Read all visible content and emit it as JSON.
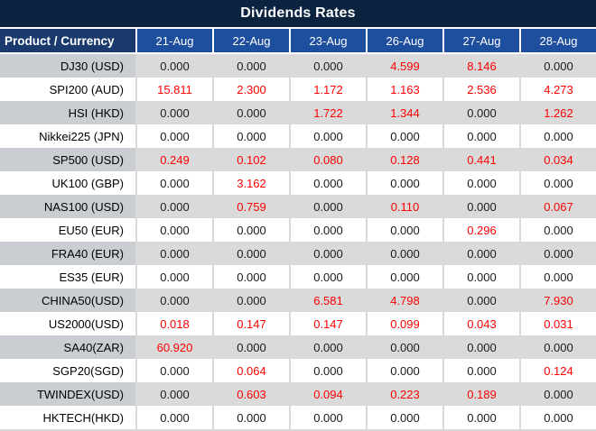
{
  "title": "Dividends Rates",
  "colors": {
    "title_bg": "#0c2340",
    "product_header_bg": "#1a3a6d",
    "date_header_bg": "#1d4f9e",
    "header_text": "#ffffff",
    "shaded_row_product_bg": "#cacdd2",
    "shaded_row_value_bg": "#dadada",
    "white_row_bg": "#ffffff",
    "zero_value_text": "#1a1a1a",
    "nonzero_value_text": "#ff0000",
    "gridline": "#d9d9d9"
  },
  "table": {
    "product_header": "Product / Currency",
    "date_columns": [
      "21-Aug",
      "22-Aug",
      "23-Aug",
      "26-Aug",
      "27-Aug",
      "28-Aug"
    ],
    "rows": [
      {
        "product": "DJ30 (USD)",
        "values": [
          "0.000",
          "0.000",
          "0.000",
          "4.599",
          "8.146",
          "0.000"
        ],
        "red": [
          0,
          0,
          0,
          1,
          1,
          0
        ]
      },
      {
        "product": "SPI200 (AUD)",
        "values": [
          "15.811",
          "2.300",
          "1.172",
          "1.163",
          "2.536",
          "4.273"
        ],
        "red": [
          1,
          1,
          1,
          1,
          1,
          1
        ]
      },
      {
        "product": "HSI (HKD)",
        "values": [
          "0.000",
          "0.000",
          "1.722",
          "1.344",
          "0.000",
          "1.262"
        ],
        "red": [
          0,
          0,
          1,
          1,
          0,
          1
        ]
      },
      {
        "product": "Nikkei225 (JPN)",
        "values": [
          "0.000",
          "0.000",
          "0.000",
          "0.000",
          "0.000",
          "0.000"
        ],
        "red": [
          0,
          0,
          0,
          0,
          0,
          0
        ]
      },
      {
        "product": "SP500 (USD)",
        "values": [
          "0.249",
          "0.102",
          "0.080",
          "0.128",
          "0.441",
          "0.034"
        ],
        "red": [
          1,
          1,
          1,
          1,
          1,
          1
        ]
      },
      {
        "product": "UK100 (GBP)",
        "values": [
          "0.000",
          "3.162",
          "0.000",
          "0.000",
          "0.000",
          "0.000"
        ],
        "red": [
          0,
          1,
          0,
          0,
          0,
          0
        ]
      },
      {
        "product": "NAS100 (USD)",
        "values": [
          "0.000",
          "0.759",
          "0.000",
          "0.110",
          "0.000",
          "0.067"
        ],
        "red": [
          0,
          1,
          0,
          1,
          0,
          1
        ]
      },
      {
        "product": "EU50 (EUR)",
        "values": [
          "0.000",
          "0.000",
          "0.000",
          "0.000",
          "0.296",
          "0.000"
        ],
        "red": [
          0,
          0,
          0,
          0,
          1,
          0
        ]
      },
      {
        "product": "FRA40 (EUR)",
        "values": [
          "0.000",
          "0.000",
          "0.000",
          "0.000",
          "0.000",
          "0.000"
        ],
        "red": [
          0,
          0,
          0,
          0,
          0,
          0
        ]
      },
      {
        "product": "ES35 (EUR)",
        "values": [
          "0.000",
          "0.000",
          "0.000",
          "0.000",
          "0.000",
          "0.000"
        ],
        "red": [
          0,
          0,
          0,
          0,
          0,
          0
        ]
      },
      {
        "product": "CHINA50(USD)",
        "values": [
          "0.000",
          "0.000",
          "6.581",
          "4.798",
          "0.000",
          "7.930"
        ],
        "red": [
          0,
          0,
          1,
          1,
          0,
          1
        ]
      },
      {
        "product": "US2000(USD)",
        "values": [
          "0.018",
          "0.147",
          "0.147",
          "0.099",
          "0.043",
          "0.031"
        ],
        "red": [
          1,
          1,
          1,
          1,
          1,
          1
        ]
      },
      {
        "product": "SA40(ZAR)",
        "values": [
          "60.920",
          "0.000",
          "0.000",
          "0.000",
          "0.000",
          "0.000"
        ],
        "red": [
          1,
          0,
          0,
          0,
          0,
          0
        ]
      },
      {
        "product": "SGP20(SGD)",
        "values": [
          "0.000",
          "0.064",
          "0.000",
          "0.000",
          "0.000",
          "0.124"
        ],
        "red": [
          0,
          1,
          0,
          0,
          0,
          1
        ]
      },
      {
        "product": "TWINDEX(USD)",
        "values": [
          "0.000",
          "0.603",
          "0.094",
          "0.223",
          "0.189",
          "0.000"
        ],
        "red": [
          0,
          1,
          1,
          1,
          1,
          0
        ]
      },
      {
        "product": "HKTECH(HKD)",
        "values": [
          "0.000",
          "0.000",
          "0.000",
          "0.000",
          "0.000",
          "0.000"
        ],
        "red": [
          0,
          0,
          0,
          0,
          0,
          0
        ]
      }
    ]
  }
}
